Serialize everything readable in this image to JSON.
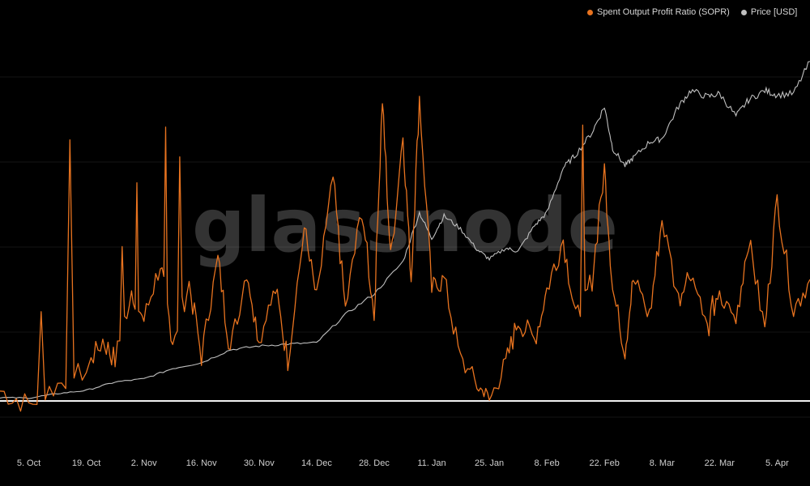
{
  "chart_data": {
    "type": "line",
    "watermark": "glassnode",
    "legend_placement": "top-right",
    "x_ticks": [
      "5. Oct",
      "19. Oct",
      "2. Nov",
      "16. Nov",
      "30. Nov",
      "14. Dec",
      "28. Dec",
      "11. Jan",
      "25. Jan",
      "8. Feb",
      "22. Feb",
      "8. Mar",
      "22. Mar",
      "5. Apr"
    ],
    "reference_line": {
      "y": 1
    },
    "series": [
      {
        "name": "Spent Output Profit Ratio (SOPR)",
        "color": "#e8731f",
        "x": [
          "28. Sep",
          "5. Oct",
          "12. Oct",
          "19. Oct",
          "23. Oct",
          "26. Oct",
          "30. Oct",
          "2. Nov",
          "6. Nov",
          "9. Nov",
          "13. Nov",
          "16. Nov",
          "20. Nov",
          "23. Nov",
          "27. Nov",
          "30. Nov",
          "4. Dec",
          "7. Dec",
          "11. Dec",
          "14. Dec",
          "18. Dec",
          "21. Dec",
          "25. Dec",
          "28. Dec",
          "30. Dec",
          "1. Jan",
          "4. Jan",
          "6. Jan",
          "8. Jan",
          "11. Jan",
          "14. Jan",
          "18. Jan",
          "22. Jan",
          "25. Jan",
          "29. Jan",
          "1. Feb",
          "5. Feb",
          "8. Feb",
          "12. Feb",
          "15. Feb",
          "19. Feb",
          "22. Feb",
          "24. Feb",
          "27. Feb",
          "1. Mar",
          "5. Mar",
          "8. Mar",
          "12. Mar",
          "15. Mar",
          "19. Mar",
          "22. Mar",
          "26. Mar",
          "29. Mar",
          "2. Apr",
          "5. Apr",
          "9. Apr",
          "13. Apr"
        ],
        "values": [
          1.005,
          0.998,
          1.008,
          1.015,
          1.03,
          1.02,
          1.055,
          1.04,
          1.068,
          1.03,
          1.058,
          1.022,
          1.07,
          1.025,
          1.065,
          1.03,
          1.055,
          1.02,
          1.085,
          1.05,
          1.11,
          1.045,
          1.095,
          1.042,
          1.15,
          1.07,
          1.132,
          1.06,
          1.15,
          1.055,
          1.06,
          1.02,
          1.008,
          1.0,
          1.018,
          1.04,
          1.03,
          1.055,
          1.08,
          1.04,
          1.06,
          1.115,
          1.055,
          1.025,
          1.06,
          1.042,
          1.09,
          1.05,
          1.065,
          1.035,
          1.05,
          1.04,
          1.08,
          1.035,
          1.1,
          1.045,
          1.06
        ],
        "spikes": [
          1.06,
          1.07,
          1.09,
          1.12,
          1.14,
          1.15
        ]
      },
      {
        "name": "Price [USD]",
        "color": "#bfbfbf",
        "x": [
          "28. Sep",
          "5. Oct",
          "12. Oct",
          "19. Oct",
          "26. Oct",
          "2. Nov",
          "9. Nov",
          "16. Nov",
          "23. Nov",
          "30. Nov",
          "7. Dec",
          "14. Dec",
          "21. Dec",
          "28. Dec",
          "4. Jan",
          "8. Jan",
          "11. Jan",
          "14. Jan",
          "18. Jan",
          "22. Jan",
          "25. Jan",
          "29. Jan",
          "1. Feb",
          "5. Feb",
          "8. Feb",
          "12. Feb",
          "15. Feb",
          "19. Feb",
          "22. Feb",
          "24. Feb",
          "27. Feb",
          "1. Mar",
          "5. Mar",
          "8. Mar",
          "12. Mar",
          "15. Mar",
          "19. Mar",
          "22. Mar",
          "26. Mar",
          "29. Mar",
          "2. Apr",
          "5. Apr",
          "9. Apr",
          "13. Apr"
        ],
        "values": [
          10800,
          10700,
          11400,
          11900,
          13200,
          13700,
          15300,
          16200,
          18200,
          18800,
          19100,
          19300,
          23700,
          26900,
          31900,
          39500,
          35500,
          39000,
          37000,
          33800,
          32300,
          34000,
          33500,
          37500,
          39500,
          46500,
          48500,
          52000,
          56000,
          49500,
          46800,
          48000,
          50500,
          51000,
          56000,
          58500,
          57500,
          58000,
          54500,
          57000,
          58500,
          57800,
          58000,
          63000
        ]
      }
    ]
  }
}
